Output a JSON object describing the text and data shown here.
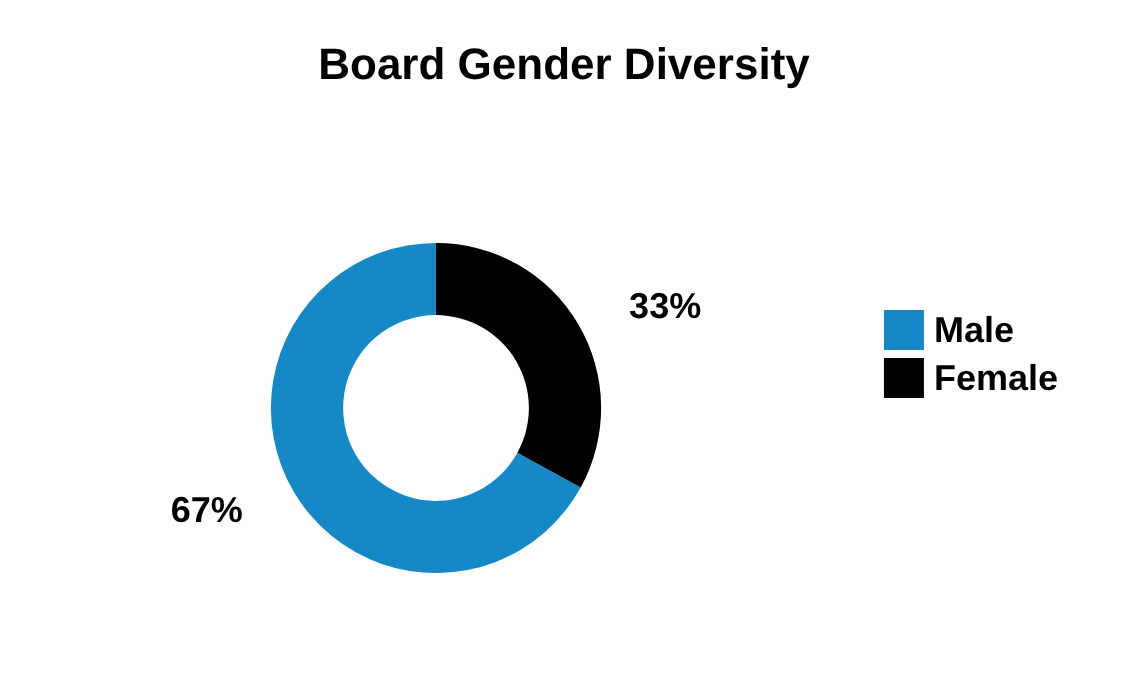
{
  "chart_data": {
    "type": "donut",
    "title": "Board Gender Diversity",
    "categories": [
      "Male",
      "Female"
    ],
    "values": [
      67,
      33
    ],
    "colors": [
      "#1589c8",
      "#000000"
    ],
    "value_labels": [
      "67%",
      "33%"
    ],
    "legend": "right"
  }
}
